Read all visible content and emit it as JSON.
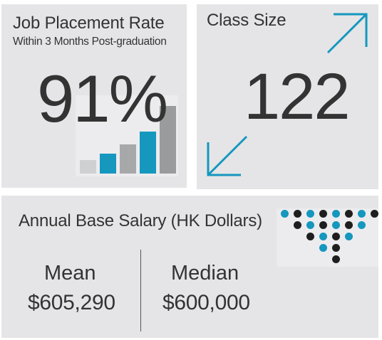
{
  "job_placement": {
    "title": "Job Placement Rate",
    "subtitle": "Within 3 Months Post-graduation",
    "value": "91%",
    "bars": [
      {
        "level": 0.17,
        "color": "#cfd0d2"
      },
      {
        "level": 0.25,
        "color": "#1597be"
      },
      {
        "level": 0.37,
        "color": "#a7a8aa"
      },
      {
        "level": 0.54,
        "color": "#1597be"
      },
      {
        "level": 0.86,
        "color": "#9a9b9d"
      }
    ]
  },
  "class_size": {
    "title": "Class Size",
    "value": "122",
    "icons": [
      "arrow-up-right-icon",
      "arrow-down-left-icon"
    ]
  },
  "salary": {
    "title": "Annual Base Salary (HK Dollars)",
    "mean_label": "Mean",
    "mean_value": "$605,290",
    "median_label": "Median",
    "median_value": "$600,000",
    "icon": "dot-funnel-icon"
  },
  "colors": {
    "accent": "#1597be",
    "card": "#e5e5e7",
    "text": "#333333",
    "dark_dot": "#1e1e1e"
  }
}
